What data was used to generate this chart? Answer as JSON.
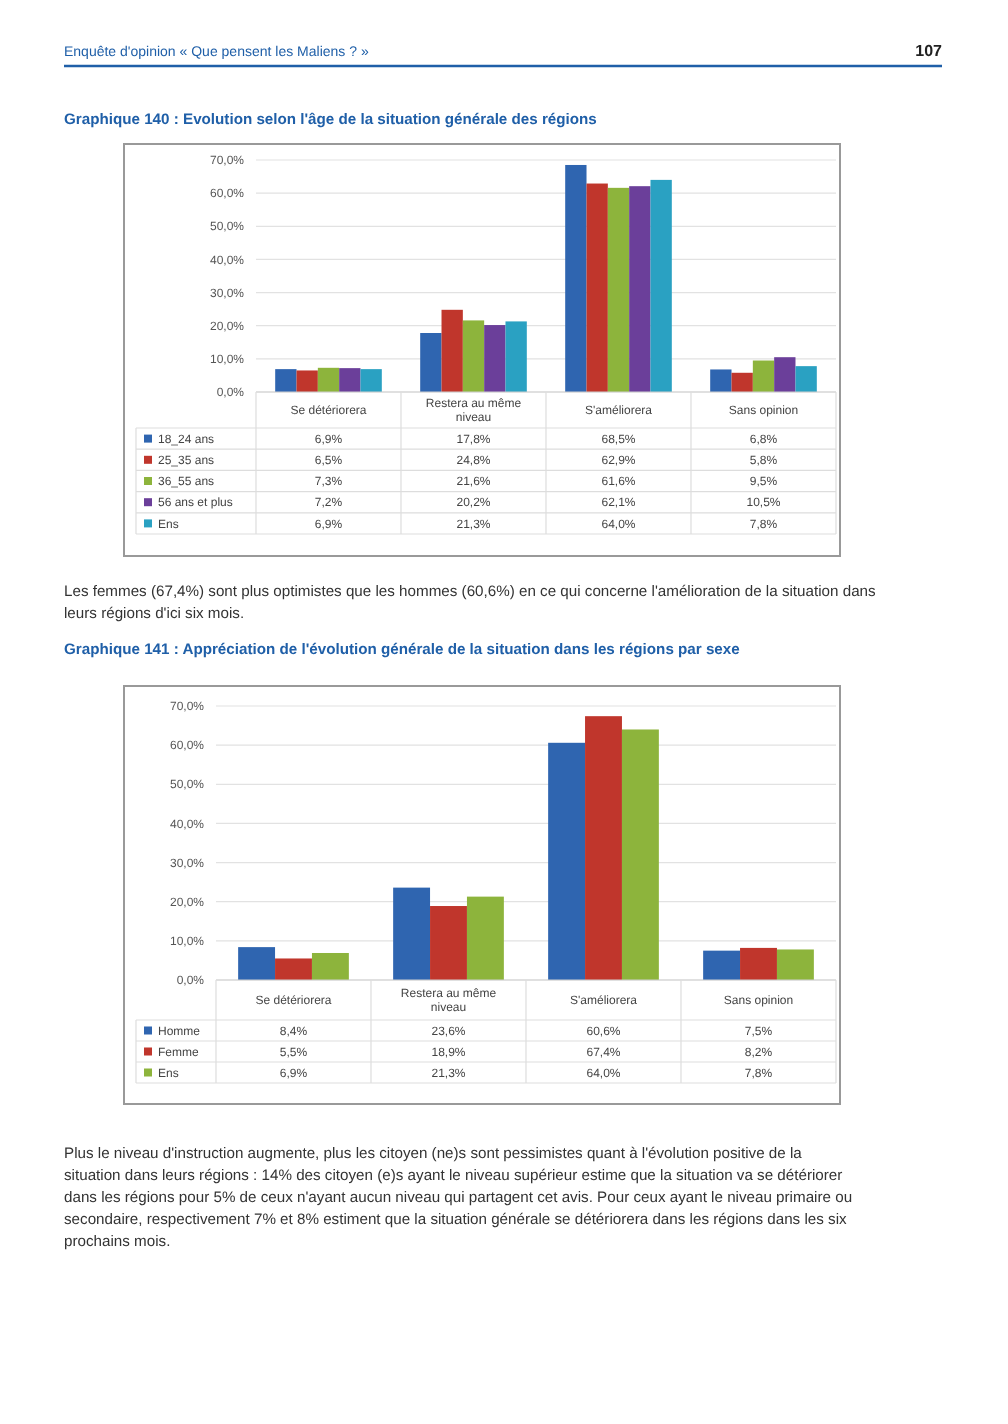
{
  "chart_data": [
    {
      "type": "bar",
      "title": "Graphique 140 : Evolution selon l'âge de la situation générale des régions",
      "categories": [
        "Se détériorera",
        "Restera au même niveau",
        "S'améliorera",
        "Sans opinion"
      ],
      "series": [
        {
          "name": "18_24 ans",
          "color": "#2f65b0",
          "values": [
            6.9,
            17.8,
            68.5,
            6.8
          ],
          "value_labels": [
            "6,9%",
            "17,8%",
            "68,5%",
            "6,8%"
          ]
        },
        {
          "name": "25_35 ans",
          "color": "#c0362c",
          "values": [
            6.5,
            24.8,
            62.9,
            5.8
          ],
          "value_labels": [
            "6,5%",
            "24,8%",
            "62,9%",
            "5,8%"
          ]
        },
        {
          "name": "36_55 ans",
          "color": "#8db43c",
          "values": [
            7.3,
            21.6,
            61.6,
            9.5
          ],
          "value_labels": [
            "7,3%",
            "21,6%",
            "61,6%",
            "9,5%"
          ]
        },
        {
          "name": "56 ans et plus",
          "color": "#6b3f9a",
          "values": [
            7.2,
            20.2,
            62.1,
            10.5
          ],
          "value_labels": [
            "7,2%",
            "20,2%",
            "62,1%",
            "10,5%"
          ]
        },
        {
          "name": "Ens",
          "color": "#2aa1c2",
          "values": [
            6.9,
            21.3,
            64.0,
            7.8
          ],
          "value_labels": [
            "6,9%",
            "21,3%",
            "64,0%",
            "7,8%"
          ]
        }
      ],
      "ylim": [
        0,
        70
      ],
      "yticks": [
        {
          "value": 0,
          "label": "0,0%"
        },
        {
          "value": 10,
          "label": "10,0%"
        },
        {
          "value": 20,
          "label": "20,0%"
        },
        {
          "value": 30,
          "label": "30,0%"
        },
        {
          "value": 40,
          "label": "40,0%"
        },
        {
          "value": 50,
          "label": "50,0%"
        },
        {
          "value": 60,
          "label": "60,0%"
        },
        {
          "value": 70,
          "label": "70,0%"
        }
      ],
      "grid": "y",
      "legend": "bottom",
      "annotations": [
        "Enquête d'opinion « Que pensent les Maliens ? »",
        "107",
        "Les femmes (67,4%) sont plus optimistes que les hommes (60,6%) en ce qui concerne l'amélioration de la situation dans leurs régions d'ici six mois."
      ]
    },
    {
      "type": "bar",
      "title": "Graphique 141 : Appréciation de l'évolution générale de la situation dans les régions par sexe",
      "categories": [
        "Se détériorera",
        "Restera au même niveau",
        "S'améliorera",
        "Sans opinion"
      ],
      "series": [
        {
          "name": "Homme",
          "color": "#2f65b0",
          "values": [
            8.4,
            23.6,
            60.6,
            7.5
          ],
          "value_labels": [
            "8,4%",
            "23,6%",
            "60,6%",
            "7,5%"
          ]
        },
        {
          "name": "Femme",
          "color": "#c0362c",
          "values": [
            5.5,
            18.9,
            67.4,
            8.2
          ],
          "value_labels": [
            "5,5%",
            "18,9%",
            "67,4%",
            "8,2%"
          ]
        },
        {
          "name": "Ens",
          "color": "#8db43c",
          "values": [
            6.9,
            21.3,
            64.0,
            7.8
          ],
          "value_labels": [
            "6,9%",
            "21,3%",
            "64,0%",
            "7,8%"
          ]
        }
      ],
      "ylim": [
        0,
        70
      ],
      "yticks": [
        {
          "value": 0,
          "label": "0,0%"
        },
        {
          "value": 10,
          "label": "10,0%"
        },
        {
          "value": 20,
          "label": "20,0%"
        },
        {
          "value": 30,
          "label": "30,0%"
        },
        {
          "value": 40,
          "label": "40,0%"
        },
        {
          "value": 50,
          "label": "50,0%"
        },
        {
          "value": 60,
          "label": "60,0%"
        },
        {
          "value": 70,
          "label": "70,0%"
        }
      ],
      "grid": "y",
      "legend": "bottom",
      "annotations": [
        "Plus le niveau d'instruction augmente, plus les citoyen (ne)s sont pessimistes quant à l'évolution positive de la situation dans leurs régions : 14% des citoyen (e)s ayant le niveau supérieur estime que la situation va se détériorer dans les régions pour 5% de ceux n'ayant aucun niveau qui partagent cet avis. Pour ceux ayant le niveau primaire ou secondaire, respectivement 7% et 8% estiment que la situation générale se détériorera dans les régions dans les six prochains mois."
      ]
    }
  ]
}
